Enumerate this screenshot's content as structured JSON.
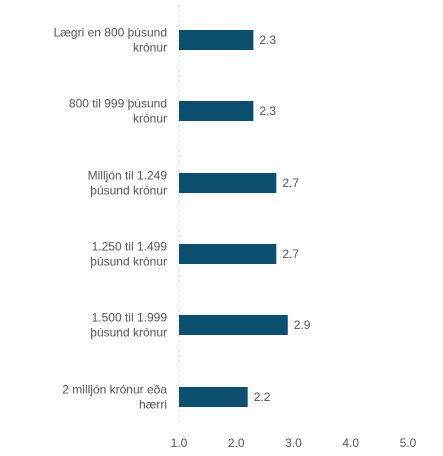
{
  "chart_data": {
    "type": "bar",
    "orientation": "horizontal",
    "categories": [
      [
        "Lægri en 800 þúsund",
        "krónur"
      ],
      [
        "800 til 999 þúsund",
        "krónur"
      ],
      [
        "Milljón til 1.249",
        "þúsund krónur"
      ],
      [
        "1.250 til 1.499",
        "þúsund krónur"
      ],
      [
        "1.500 til 1.999",
        "þúsund krónur"
      ],
      [
        "2 milljón krónur eða",
        "hærri"
      ]
    ],
    "values": [
      2.3,
      2.3,
      2.7,
      2.7,
      2.9,
      2.2
    ],
    "value_labels": [
      "2.3",
      "2.3",
      "2.7",
      "2.7",
      "2.9",
      "2.2"
    ],
    "xlim": [
      1.0,
      5.0
    ],
    "xticks": [
      "1.0",
      "2.0",
      "3.0",
      "4.0",
      "5.0"
    ],
    "title": "",
    "xlabel": "",
    "ylabel": "",
    "bar_color": "#0d4f6e",
    "grid": false,
    "baseline_style": "dotted"
  }
}
